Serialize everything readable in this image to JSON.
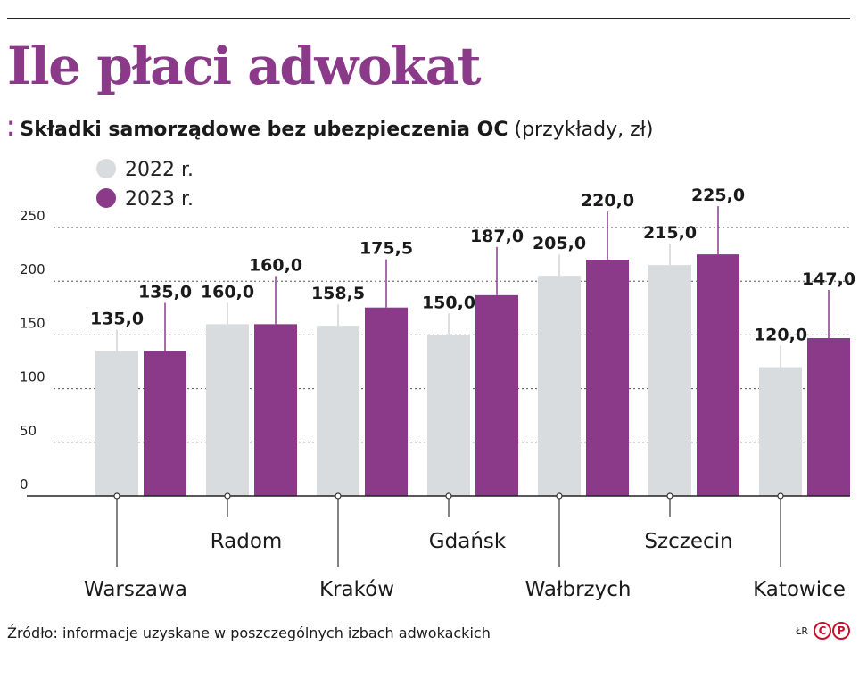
{
  "header": {
    "title": "Ile płaci adwokat",
    "subtitle_bold": "Składki samorządowe bez ubezpieczenia OC",
    "subtitle_light": "(przykłady, zł)"
  },
  "footer": {
    "source": "Źródło: informacje uzyskane w poszczególnych izbach adwokackich",
    "credit": "ŁR",
    "logo_letters": [
      "C",
      "P"
    ]
  },
  "colors": {
    "series_2022": "#d8dcdf",
    "series_2023": "#8b3a8a",
    "title": "#8b3a8a",
    "logo": "#c8102e"
  },
  "chart_data": {
    "type": "bar",
    "title": "Ile płaci adwokat",
    "subtitle": "Składki samorządowe bez ubezpieczenia OC (przykłady, zł)",
    "categories": [
      "Warszawa",
      "Radom",
      "Kraków",
      "Gdańsk",
      "Wałbrzych",
      "Szczecin",
      "Katowice"
    ],
    "series": [
      {
        "name": "2022 r.",
        "values": [
          135.0,
          160.0,
          158.5,
          150.0,
          205.0,
          215.0,
          120.0
        ]
      },
      {
        "name": "2023 r.",
        "values": [
          135.0,
          160.0,
          175.5,
          187.0,
          220.0,
          225.0,
          147.0
        ]
      }
    ],
    "data_labels": [
      [
        "135,0",
        "160,0",
        "158,5",
        "150,0",
        "205,0",
        "215,0",
        "120,0"
      ],
      [
        "135,0",
        "160,0",
        "175,5",
        "187,0",
        "220,0",
        "225,0",
        "147,0"
      ]
    ],
    "y_ticks": [
      "0",
      "50",
      "100",
      "150",
      "200",
      "250"
    ],
    "y_tick_values": [
      0,
      50,
      100,
      150,
      200,
      250
    ],
    "ylim": [
      0,
      250
    ],
    "grid": true,
    "legend_position": "top-left"
  }
}
